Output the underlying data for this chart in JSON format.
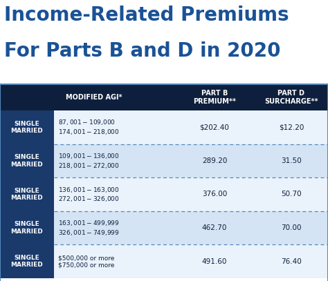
{
  "title_line1": "Income-Related Premiums",
  "title_line2": "For Parts B and D in 2020",
  "title_color": "#1a5296",
  "bg_color": "#ffffff",
  "header_bg": "#0d1f3c",
  "header_text_color": "#ffffff",
  "col_label_bg": "#1a3a6b",
  "col_label_text": "#ffffff",
  "row_bg_light": "#d4e4f4",
  "row_bg_white": "#eaf2fb",
  "divider_color": "#5588bb",
  "headers": [
    "MODIFIED AGI*",
    "PART B\nPREMIUM**",
    "PART D\nSURCHARGE**"
  ],
  "rows": [
    {
      "label": "SINGLE\nMARRIED",
      "agi": "$87,001-$109,000\n$174,001-$218,000",
      "part_b": "$202.40",
      "part_d": "$12.20",
      "bg": "#eaf2fb"
    },
    {
      "label": "SINGLE\nMARRIED",
      "agi": "$109,001-$136,000\n$218,001-$272,000",
      "part_b": "289.20",
      "part_d": "31.50",
      "bg": "#d4e4f4"
    },
    {
      "label": "SINGLE\nMARRIED",
      "agi": "$136,001-$163,000\n$272,001-$326,000",
      "part_b": "376.00",
      "part_d": "50.70",
      "bg": "#eaf2fb"
    },
    {
      "label": "SINGLE\nMARRIED",
      "agi": "$163,001-$499,999\n$326,001-$749,999",
      "part_b": "462.70",
      "part_d": "70.00",
      "bg": "#d4e4f4"
    },
    {
      "label": "SINGLE\nMARRIED",
      "agi": "$500,000 or more\n$750,000 or more",
      "part_b": "491.60",
      "part_d": "76.40",
      "bg": "#eaf2fb"
    }
  ],
  "fig_w": 4.74,
  "fig_h": 4.07,
  "dpi": 100
}
